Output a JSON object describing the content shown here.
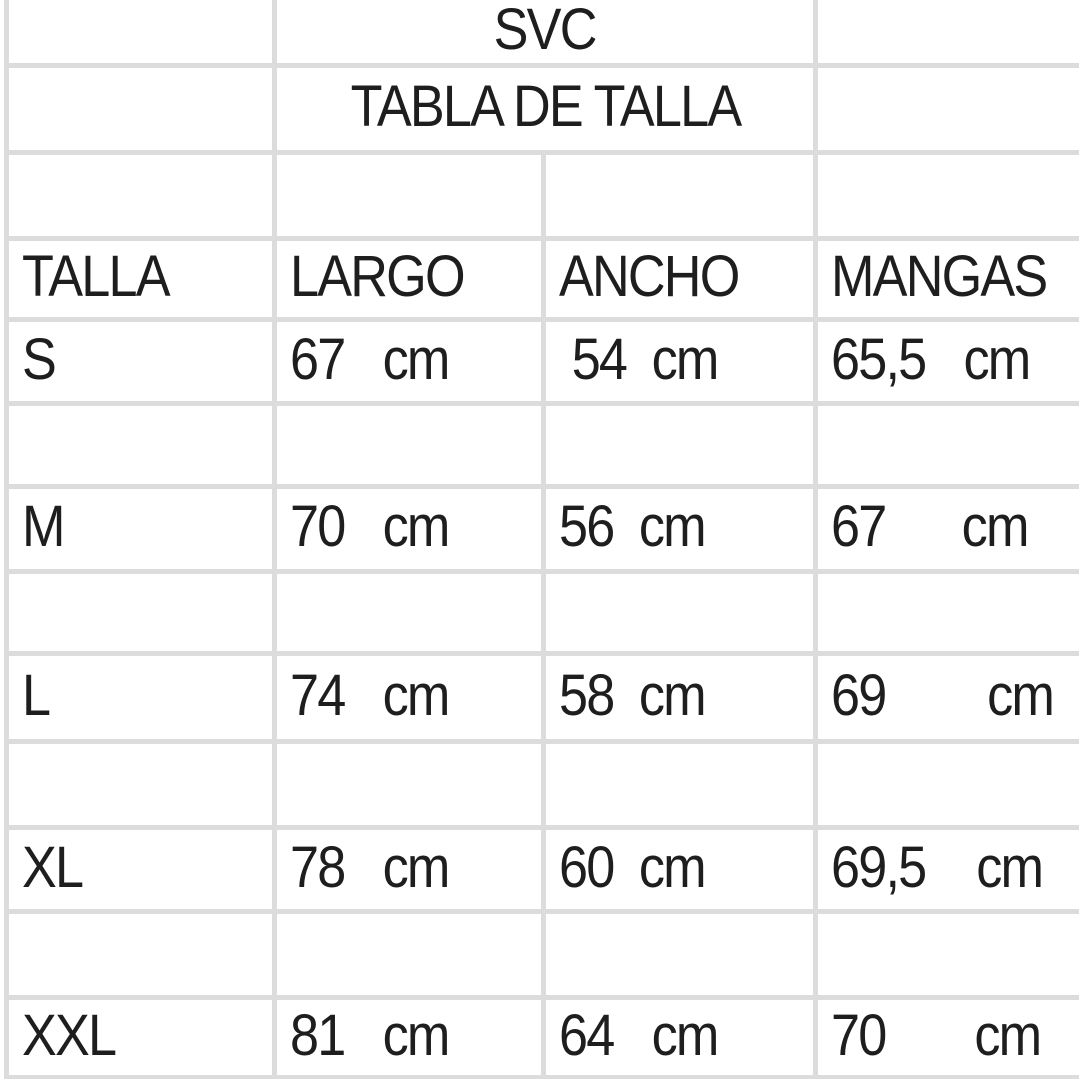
{
  "title_block": {
    "brand": "SVC",
    "title": "TABLA DE TALLA"
  },
  "size_table": {
    "columns": [
      "TALLA",
      "LARGO",
      "ANCHO",
      "MANGAS"
    ],
    "rows": [
      {
        "cells": [
          "S",
          "67   cm",
          " 54  cm",
          "65,5   cm"
        ]
      },
      {
        "cells": [
          "M",
          "70   cm",
          "56  cm",
          "67      cm"
        ]
      },
      {
        "cells": [
          "L",
          "74   cm",
          "58  cm",
          "69        cm"
        ]
      },
      {
        "cells": [
          "XL",
          "78   cm",
          "60  cm",
          "69,5    cm"
        ]
      },
      {
        "cells": [
          "XXL",
          "81   cm",
          "64   cm",
          "70       cm"
        ]
      }
    ]
  },
  "colors": {
    "grid_line": "#dcdcdc",
    "text": "#1e1e1e",
    "background": "#ffffff"
  }
}
